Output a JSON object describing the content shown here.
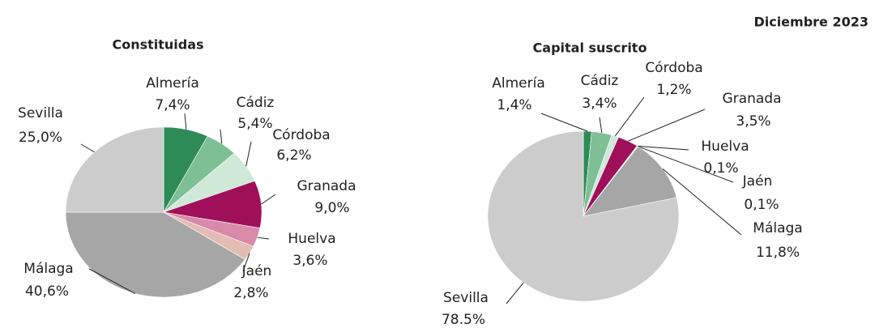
{
  "title": "Diciembre 2023",
  "chart_data": [
    {
      "type": "pie",
      "title": "Constituidas",
      "categories": [
        "Almería",
        "Cádiz",
        "Córdoba",
        "Granada",
        "Huelva",
        "Jaén",
        "Málaga",
        "Sevilla"
      ],
      "values": [
        7.4,
        5.4,
        6.2,
        9.0,
        3.6,
        2.8,
        40.6,
        25.0
      ],
      "value_labels": [
        "7,4%",
        "5,4%",
        "6,2%",
        "9,0%",
        "3,6%",
        "2,8%",
        "40,6%",
        "25,0%"
      ],
      "colors": [
        "#2e8b57",
        "#7fbf96",
        "#cfe8d8",
        "#a0105a",
        "#d98aa8",
        "#e3bcb4",
        "#a6a6a6",
        "#cccccc"
      ]
    },
    {
      "type": "pie",
      "title": "Capital suscrito",
      "categories": [
        "Almería",
        "Cádiz",
        "Córdoba",
        "Granada",
        "Huelva",
        "Jaén",
        "Málaga",
        "Sevilla"
      ],
      "values": [
        1.4,
        3.4,
        1.2,
        3.5,
        0.1,
        0.1,
        11.8,
        78.5
      ],
      "value_labels": [
        "1,4%",
        "3,4%",
        "1,2%",
        "3,5%",
        "0,1%",
        "0,1%",
        "11,8%",
        "78.5%"
      ],
      "colors": [
        "#2e8b57",
        "#7fbf96",
        "#cfe8d8",
        "#a0105a",
        "#d98aa8",
        "#e3bcb4",
        "#a6a6a6",
        "#cccccc"
      ]
    }
  ]
}
